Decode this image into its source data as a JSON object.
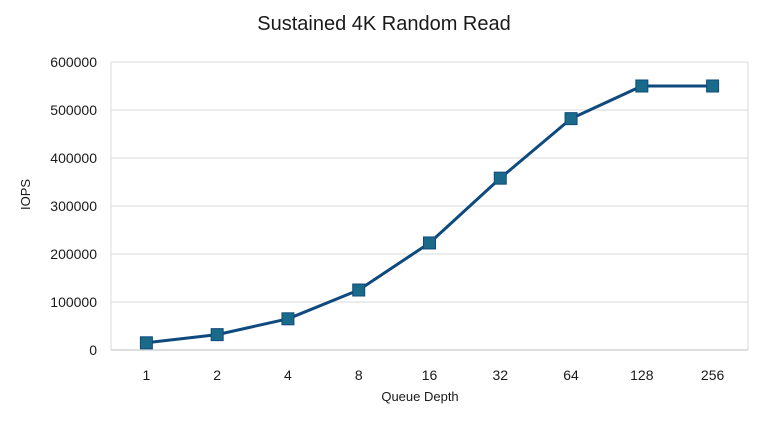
{
  "chart_data": {
    "type": "line",
    "title": "Sustained 4K Random Read",
    "xlabel": "Queue Depth",
    "ylabel": "IOPS",
    "categories": [
      "1",
      "2",
      "4",
      "8",
      "16",
      "32",
      "64",
      "128",
      "256"
    ],
    "series": [
      {
        "values": [
          15000,
          32000,
          65000,
          125000,
          223000,
          358000,
          482000,
          550000,
          550000
        ],
        "color": "#0f4a7f",
        "marker_color": "#1a6a8a",
        "marker": "square"
      }
    ],
    "ylim": [
      0,
      600000
    ],
    "yticks": [
      "0",
      "100000",
      "200000",
      "300000",
      "400000",
      "500000",
      "600000"
    ],
    "grid": true,
    "gridline_color": "#d9d9d9"
  }
}
